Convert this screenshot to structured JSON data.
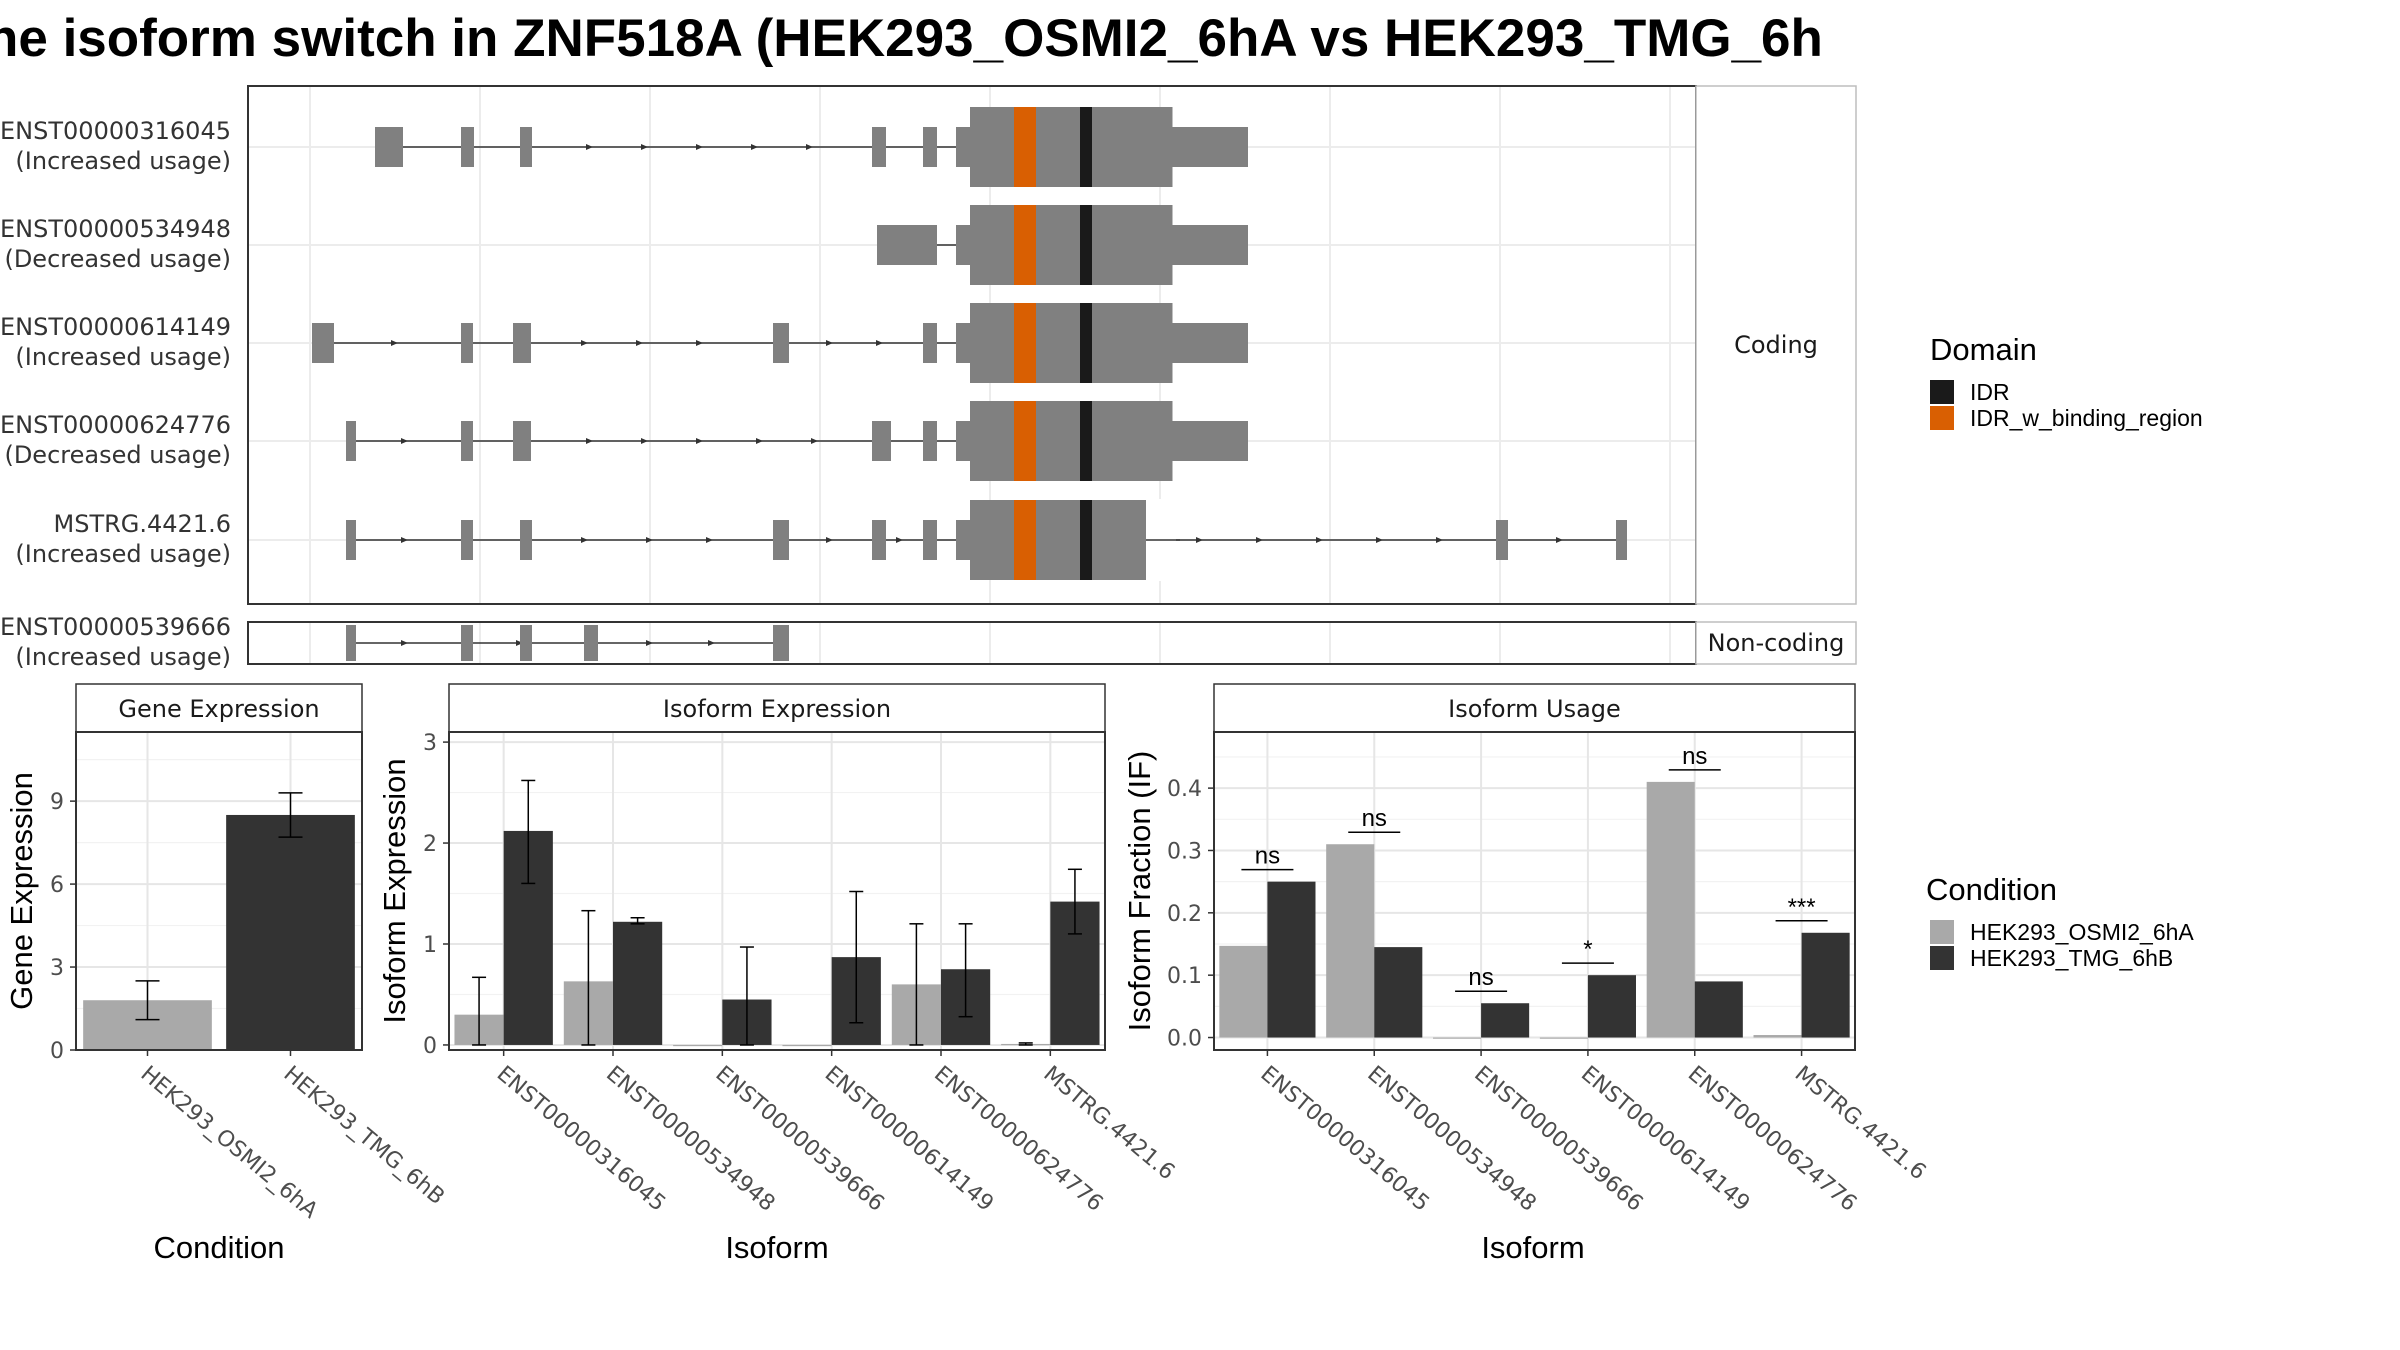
{
  "title": "ne isoform switch in ZNF518A (HEK293_OSMI2_6hA vs HEK293_TMG_6h",
  "colors": {
    "exon": "#808080",
    "idr": "#1a1a1a",
    "idr_binding": "#d95f02",
    "cond_a": "#a9a9a9",
    "cond_b": "#333333"
  },
  "structure": {
    "coding_label": "Coding",
    "noncoding_label": "Non-coding",
    "transcripts": [
      {
        "id": "ENST00000316045",
        "note": "(Increased usage)",
        "group": "coding"
      },
      {
        "id": "ENST00000534948",
        "note": "(Decreased usage)",
        "group": "coding"
      },
      {
        "id": "ENST00000614149",
        "note": "(Increased usage)",
        "group": "coding"
      },
      {
        "id": "ENST00000624776",
        "note": "(Decreased usage)",
        "group": "coding"
      },
      {
        "id": "MSTRG.4421.6",
        "note": "(Increased usage)",
        "group": "coding"
      },
      {
        "id": "ENST00000539666",
        "note": "(Increased usage)",
        "group": "noncoding"
      }
    ]
  },
  "legends": {
    "domain": {
      "title": "Domain",
      "items": [
        {
          "label": "IDR",
          "color": "#1a1a1a"
        },
        {
          "label": "IDR_w_binding_region",
          "color": "#d95f02"
        }
      ]
    },
    "condition": {
      "title": "Condition",
      "items": [
        {
          "label": "HEK293_OSMI2_6hA",
          "color": "#a9a9a9"
        },
        {
          "label": "HEK293_TMG_6hB",
          "color": "#333333"
        }
      ]
    }
  },
  "chart_data": [
    {
      "type": "bar",
      "title": "Gene Expression",
      "xlabel": "Condition",
      "ylabel": "Gene Expression",
      "categories": [
        "HEK293_OSMI2_6hA",
        "HEK293_TMG_6hB"
      ],
      "values": [
        1.8,
        8.5
      ],
      "error_low": [
        1.1,
        7.7
      ],
      "error_high": [
        2.5,
        9.3
      ],
      "yticks": [
        0,
        3,
        6,
        9
      ],
      "ylim": [
        0,
        11.5
      ],
      "grid": true
    },
    {
      "type": "bar",
      "title": "Isoform Expression",
      "xlabel": "Isoform",
      "ylabel": "Isoform Expression",
      "categories": [
        "ENST00000316045",
        "ENST00000534948",
        "ENST00000539666",
        "ENST00000614149",
        "ENST00000624776",
        "MSTRG.4421.6"
      ],
      "series": [
        {
          "name": "HEK293_OSMI2_6hA",
          "values": [
            0.3,
            0.63,
            0.0,
            0.0,
            0.6,
            0.01
          ],
          "error_low": [
            0.0,
            0.0,
            0.0,
            0.0,
            0.0,
            0.0
          ],
          "error_high": [
            0.67,
            1.33,
            0.0,
            0.0,
            1.2,
            0.02
          ]
        },
        {
          "name": "HEK293_TMG_6hB",
          "values": [
            2.12,
            1.22,
            0.45,
            0.87,
            0.75,
            1.42
          ],
          "error_low": [
            1.6,
            1.2,
            0.0,
            0.22,
            0.28,
            1.1
          ],
          "error_high": [
            2.62,
            1.26,
            0.97,
            1.52,
            1.2,
            1.74
          ]
        }
      ],
      "yticks": [
        0,
        1,
        2,
        3
      ],
      "ylim": [
        -0.05,
        3.1
      ],
      "grid": true
    },
    {
      "type": "bar",
      "title": "Isoform Usage",
      "xlabel": "Isoform",
      "ylabel": "Isoform Fraction (IF)",
      "categories": [
        "ENST00000316045",
        "ENST00000534948",
        "ENST00000539666",
        "ENST00000614149",
        "ENST00000624776",
        "MSTRG.4421.6"
      ],
      "series": [
        {
          "name": "HEK293_OSMI2_6hA",
          "values": [
            0.147,
            0.31,
            0.0,
            0.0,
            0.41,
            0.004
          ]
        },
        {
          "name": "HEK293_TMG_6hB",
          "values": [
            0.25,
            0.145,
            0.055,
            0.1,
            0.09,
            0.168
          ]
        }
      ],
      "significance": [
        "ns",
        "ns",
        "ns",
        "*",
        "ns",
        "***"
      ],
      "yticks": [
        0.0,
        0.1,
        0.2,
        0.3,
        0.4
      ],
      "ylim": [
        -0.02,
        0.49
      ],
      "grid": true
    }
  ]
}
